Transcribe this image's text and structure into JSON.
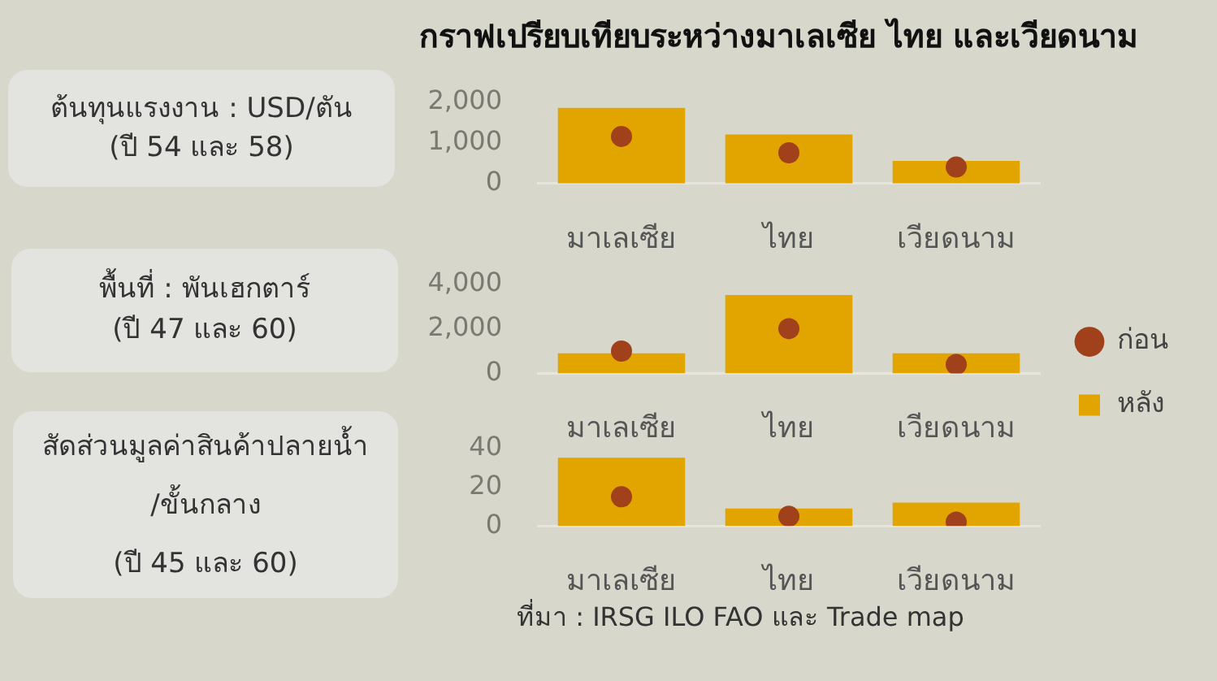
{
  "chart_data": [
    {
      "type": "bar",
      "title": "กราฟเปรียบเทียบระหว่างมาเลเซีย ไทย และเวียดนาม",
      "ylabel": "ต้นทุนแรงงาน : USD/ตัน\n(ปี 54 และ 58)",
      "categories": [
        "มาเลเซีย",
        "ไทย",
        "เวียดนาม"
      ],
      "series": [
        {
          "type": "scatter",
          "color": "#a0411b",
          "marker": "circle",
          "x": [
            "มาเลเซีย",
            "ไทย",
            "เวียดนาม"
          ],
          "values": [
            1150,
            750,
            400
          ]
        },
        {
          "color": "#e2a500",
          "values": [
            1850,
            1200,
            550
          ]
        }
      ],
      "ylim": [
        0,
        2000
      ],
      "yticks": [
        0,
        {
          "value": 1000,
          "label": "1,000"
        },
        {
          "value": 2000,
          "label": "2,000"
        }
      ]
    },
    {
      "type": "bar",
      "ylabel": "พื้นที่ : พันเฮกตาร์\n(ปี 47 และ 60)",
      "categories": [
        "มาเลเซีย",
        "ไทย",
        "เวียดนาม"
      ],
      "series": [
        {
          "name": "ก่อน",
          "type": "scatter",
          "color": "#a0411b",
          "marker": "circle",
          "x": [
            "มาเลเซีย",
            "ไทย",
            "เวียดนาม"
          ],
          "values": [
            1000,
            2000,
            400
          ]
        },
        {
          "name": "หลัง",
          "color": "#e2a500",
          "values": [
            900,
            3500,
            900
          ]
        }
      ],
      "ylim": [
        0,
        4000
      ],
      "yticks": [
        0,
        {
          "value": 2000,
          "label": "2,000"
        },
        {
          "value": 4000,
          "label": "4,000"
        }
      ],
      "legend": "right"
    },
    {
      "type": "bar",
      "ylabel": "สัดส่วนมูลค่าสินค้าปลายน้ำ\n/ขั้นกลาง\n(ปี 45 และ 60)",
      "categories": [
        "มาเลเซีย",
        "ไทย",
        "เวียดนาม"
      ],
      "series": [
        {
          "type": "scatter",
          "color": "#a0411b",
          "marker": "circle",
          "x": [
            "มาเลเซีย",
            "ไทย",
            "เวียดนาม"
          ],
          "values": [
            15,
            5,
            2
          ]
        },
        {
          "color": "#e2a500",
          "values": [
            35,
            9,
            12
          ]
        }
      ],
      "ylim": [
        0,
        40
      ],
      "yticks": [
        0,
        20,
        40
      ],
      "annotations": [
        "ที่มา : IRSG ILO FAO และ Trade map"
      ]
    }
  ]
}
